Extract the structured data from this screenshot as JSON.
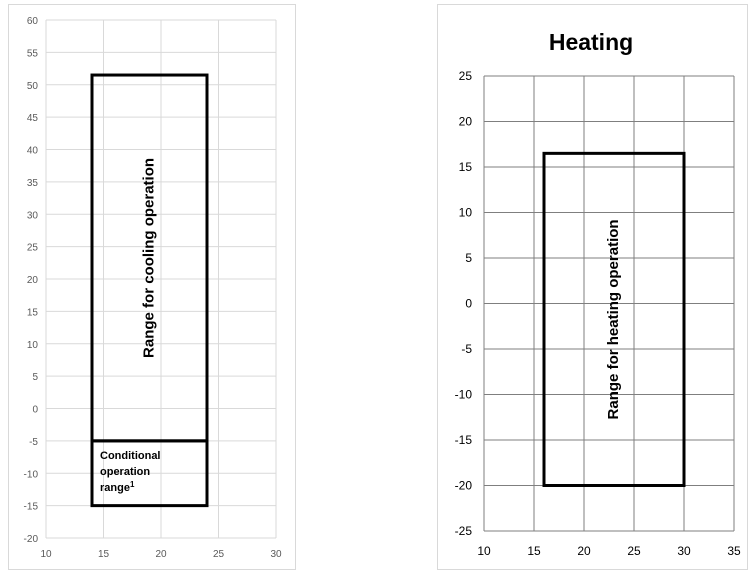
{
  "chart_data": [
    {
      "type": "area",
      "title": "",
      "xlabel": "",
      "ylabel": "",
      "xlim": [
        10,
        30
      ],
      "ylim": [
        -20,
        60
      ],
      "xticks": [
        10,
        15,
        20,
        25,
        30
      ],
      "yticks": [
        60,
        55,
        50,
        45,
        40,
        35,
        30,
        25,
        20,
        15,
        10,
        5,
        0,
        -5,
        -10,
        -15,
        -20
      ],
      "grid": true,
      "gridcolor": "#d9d9d9",
      "regions": [
        {
          "label": "Range for cooling operation",
          "x": [
            14,
            24
          ],
          "y": [
            -5,
            51.5
          ]
        },
        {
          "label": "Conditional operation range",
          "sup": "1",
          "x": [
            14,
            24
          ],
          "y": [
            -15,
            -5
          ]
        }
      ]
    },
    {
      "type": "area",
      "title": "Heating",
      "xlabel": "",
      "ylabel": "",
      "xlim": [
        10,
        35
      ],
      "ylim": [
        -25,
        25
      ],
      "xticks": [
        10,
        15,
        20,
        25,
        30,
        35
      ],
      "yticks": [
        25,
        20,
        15,
        10,
        5,
        0,
        -5,
        -10,
        -15,
        -20,
        -25
      ],
      "grid": true,
      "gridcolor": "#7f7f7f",
      "regions": [
        {
          "label": "Range for heating operation",
          "x": [
            16,
            30
          ],
          "y": [
            -20,
            16.5
          ]
        }
      ]
    }
  ]
}
